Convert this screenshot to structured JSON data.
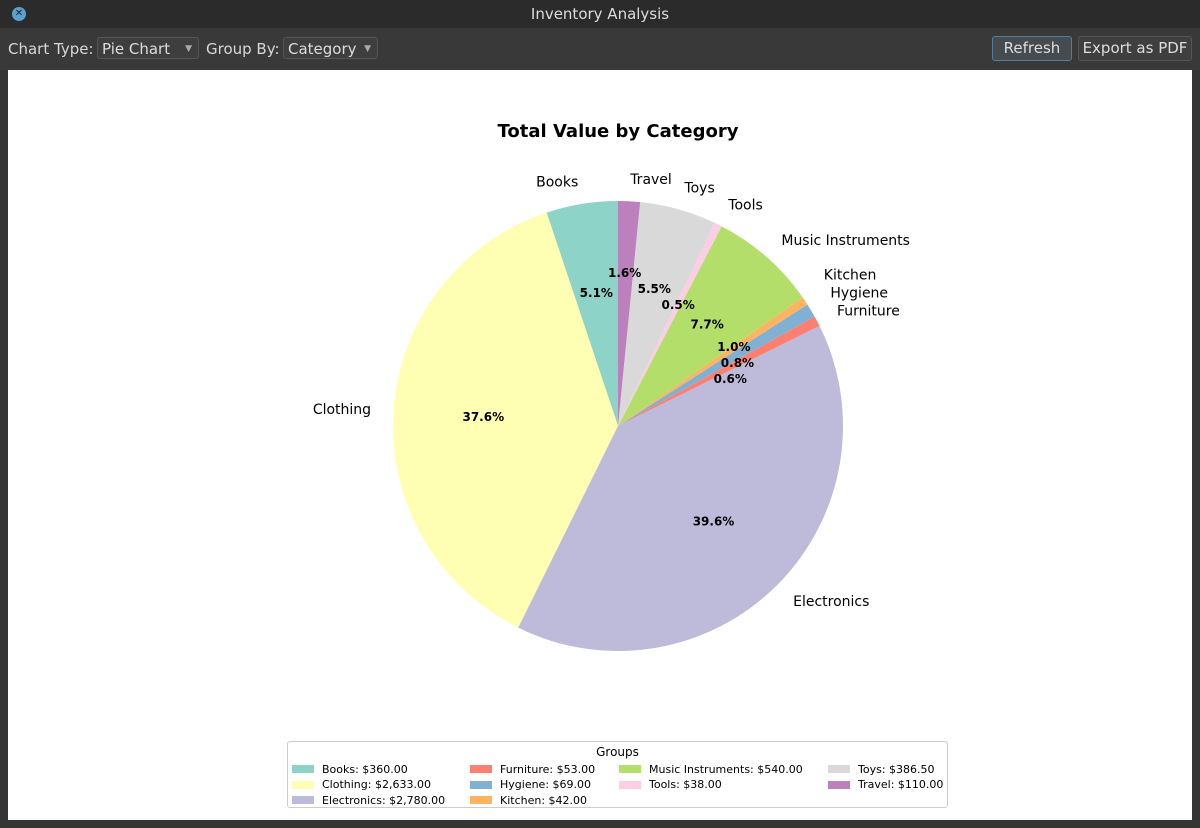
{
  "window": {
    "title": "Inventory Analysis"
  },
  "toolbar": {
    "chart_type_label": "Chart Type:",
    "chart_type_value": "Pie Chart",
    "group_by_label": "Group By:",
    "group_by_value": "Category",
    "refresh_label": "Refresh",
    "export_label": "Export as PDF"
  },
  "chart_data": {
    "type": "pie",
    "title": "Total Value by Category",
    "start_angle": 90,
    "direction": "counterclockwise",
    "pct_format": "%1.1f%%",
    "categories": [
      "Books",
      "Clothing",
      "Electronics",
      "Furniture",
      "Hygiene",
      "Kitchen",
      "Music Instruments",
      "Tools",
      "Toys",
      "Travel"
    ],
    "values": [
      360,
      2633,
      2780,
      53,
      69,
      42,
      540,
      38,
      386.5,
      110
    ],
    "colors": [
      "#8dd3c7",
      "#ffffb3",
      "#bebada",
      "#fb8072",
      "#80b1d3",
      "#fdb462",
      "#b3de69",
      "#fccde5",
      "#d9d9d9",
      "#bc80bd"
    ],
    "legend": {
      "title": "Groups",
      "placement": "bottom-center",
      "entries": [
        "Books: $360.00",
        "Clothing: $2,633.00",
        "Electronics: $2,780.00",
        "Furniture: $53.00",
        "Hygiene: $69.00",
        "Kitchen: $42.00",
        "Music Instruments: $540.00",
        "Tools: $38.00",
        "Toys: $386.50",
        "Travel: $110.00"
      ]
    }
  }
}
